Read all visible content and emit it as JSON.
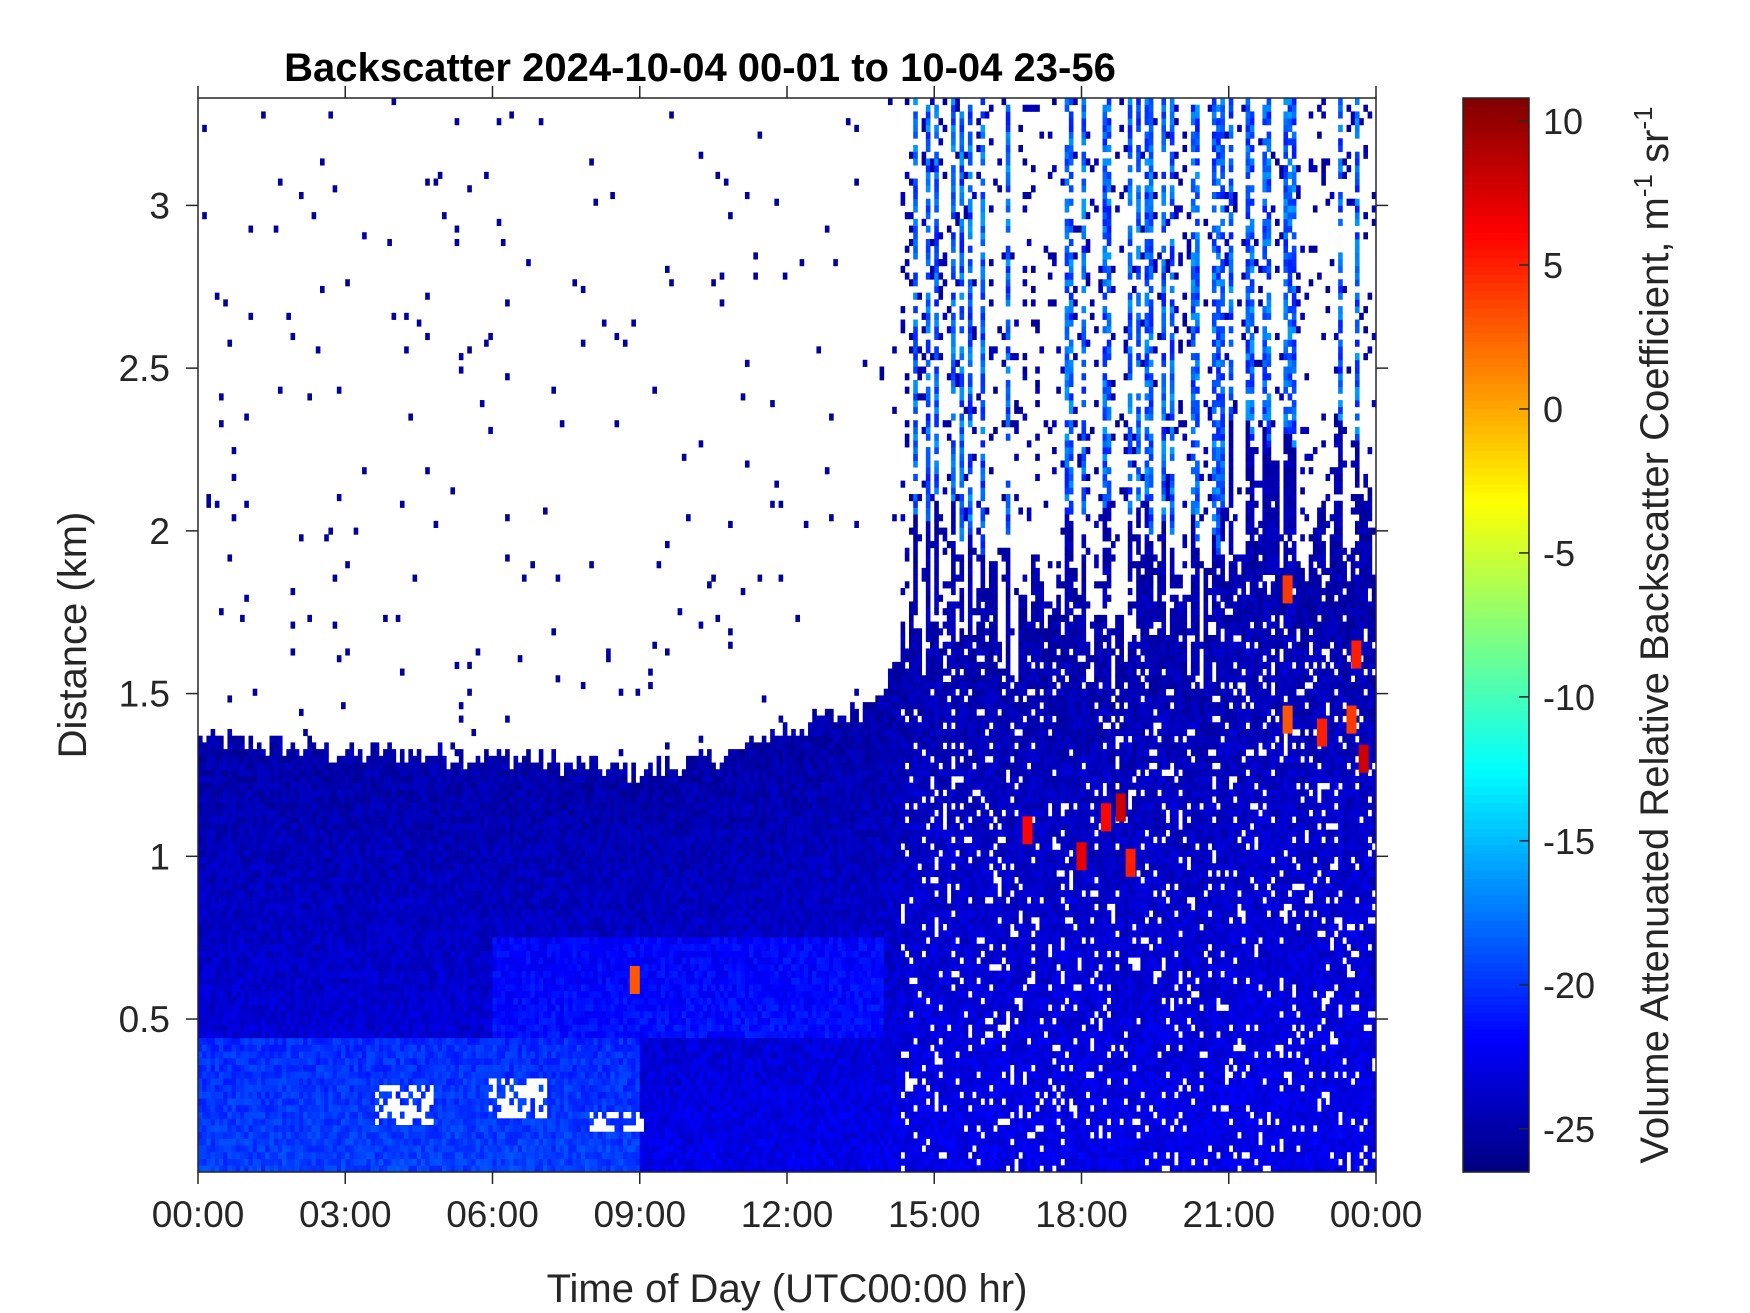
{
  "chart_data": {
    "type": "heatmap",
    "title": "Backscatter 2024-10-04 00-01 to 10-04 23-56",
    "xlabel": "Time of Day (UTC00:00 hr)",
    "ylabel": "Distance (km)",
    "xlim": [
      0,
      24
    ],
    "ylim": [
      0.03,
      3.33
    ],
    "x_ticks": [
      {
        "value": 0,
        "label": "00:00"
      },
      {
        "value": 3,
        "label": "03:00"
      },
      {
        "value": 6,
        "label": "06:00"
      },
      {
        "value": 9,
        "label": "09:00"
      },
      {
        "value": 12,
        "label": "12:00"
      },
      {
        "value": 15,
        "label": "15:00"
      },
      {
        "value": 18,
        "label": "18:00"
      },
      {
        "value": 21,
        "label": "21:00"
      },
      {
        "value": 24,
        "label": "00:00"
      }
    ],
    "y_ticks": [
      {
        "value": 0.5,
        "label": "0.5"
      },
      {
        "value": 1,
        "label": "1"
      },
      {
        "value": 1.5,
        "label": "1.5"
      },
      {
        "value": 2,
        "label": "2"
      },
      {
        "value": 2.5,
        "label": "2.5"
      },
      {
        "value": 3,
        "label": "3"
      }
    ],
    "colorbar": {
      "label": "Volume Attenuated Relative Backscatter Coefficient, m",
      "label_exp1": "-1",
      "label_mid": " sr",
      "label_exp2": "-1",
      "colormap": "jet",
      "range": [
        -26.5,
        10.8
      ],
      "ticks": [
        {
          "value": 10,
          "label": "10"
        },
        {
          "value": 5,
          "label": "5"
        },
        {
          "value": 0,
          "label": "0"
        },
        {
          "value": -5,
          "label": "-5"
        },
        {
          "value": -10,
          "label": "-10"
        },
        {
          "value": -15,
          "label": "-15"
        },
        {
          "value": -20,
          "label": "-20"
        },
        {
          "value": -25,
          "label": "-25"
        }
      ]
    },
    "features": {
      "boundary_layer_top_km": [
        [
          0,
          1.32
        ],
        [
          3,
          1.28
        ],
        [
          6,
          1.27
        ],
        [
          9,
          1.22
        ],
        [
          11,
          1.28
        ],
        [
          12,
          1.35
        ],
        [
          13.5,
          1.42
        ],
        [
          14.3,
          1.55
        ]
      ],
      "cloud_free_gap_km": [
        [
          4.2,
          0.18,
          0.3
        ],
        [
          6.5,
          0.2,
          0.32
        ],
        [
          8.5,
          0.15,
          0.22
        ]
      ],
      "hot_spots": [
        {
          "t": 8.9,
          "z": 0.62,
          "value": 3
        },
        {
          "t": 16.9,
          "z": 1.08,
          "value": 6
        },
        {
          "t": 18.0,
          "z": 1.0,
          "value": 7
        },
        {
          "t": 18.5,
          "z": 1.12,
          "value": 6
        },
        {
          "t": 18.8,
          "z": 1.15,
          "value": 8
        },
        {
          "t": 19.0,
          "z": 0.98,
          "value": 5
        },
        {
          "t": 22.2,
          "z": 1.82,
          "value": 4
        },
        {
          "t": 22.2,
          "z": 1.42,
          "value": 3
        },
        {
          "t": 22.9,
          "z": 1.38,
          "value": 5
        },
        {
          "t": 23.5,
          "z": 1.42,
          "value": 4
        },
        {
          "t": 23.6,
          "z": 1.62,
          "value": 5
        },
        {
          "t": 23.75,
          "z": 1.3,
          "value": 8
        }
      ]
    }
  }
}
